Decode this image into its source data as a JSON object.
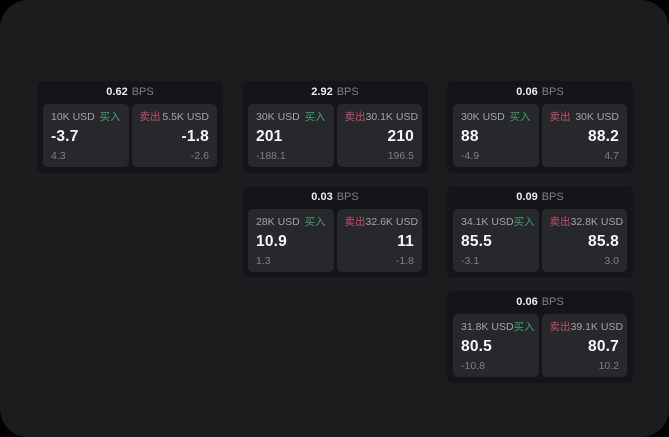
{
  "colors": {
    "buy_accent": "#43a06d",
    "sell_accent": "#c24f68"
  },
  "cards": [
    {
      "grid": {
        "row": 1,
        "col": 1
      },
      "bps": {
        "value": "0.62",
        "unit": "BPS"
      },
      "buy": {
        "amount": "10K USD",
        "label": "买入",
        "price": "-3.7",
        "sub": "4.3"
      },
      "sell": {
        "label": "卖出",
        "amount": "5.5K USD",
        "price": "-1.8",
        "sub": "-2.6"
      }
    },
    {
      "grid": {
        "row": 1,
        "col": 2
      },
      "bps": {
        "value": "2.92",
        "unit": "BPS"
      },
      "buy": {
        "amount": "30K USD",
        "label": "买入",
        "price": "201",
        "sub": "-188.1"
      },
      "sell": {
        "label": "卖出",
        "amount": "30.1K USD",
        "price": "210",
        "sub": "196.5"
      }
    },
    {
      "grid": {
        "row": 1,
        "col": 3
      },
      "bps": {
        "value": "0.06",
        "unit": "BPS"
      },
      "buy": {
        "amount": "30K USD",
        "label": "买入",
        "price": "88",
        "sub": "-4.9"
      },
      "sell": {
        "label": "卖出",
        "amount": "30K USD",
        "price": "88.2",
        "sub": "4.7"
      }
    },
    {
      "grid": {
        "row": 2,
        "col": 2
      },
      "bps": {
        "value": "0.03",
        "unit": "BPS"
      },
      "buy": {
        "amount": "28K USD",
        "label": "买入",
        "price": "10.9",
        "sub": "1.3"
      },
      "sell": {
        "label": "卖出",
        "amount": "32.6K USD",
        "price": "11",
        "sub": "-1.8"
      }
    },
    {
      "grid": {
        "row": 2,
        "col": 3
      },
      "bps": {
        "value": "0.09",
        "unit": "BPS"
      },
      "buy": {
        "amount": "34.1K USD",
        "label": "买入",
        "price": "85.5",
        "sub": "-3.1"
      },
      "sell": {
        "label": "卖出",
        "amount": "32.8K USD",
        "price": "85.8",
        "sub": "3.0"
      }
    },
    {
      "grid": {
        "row": 3,
        "col": 3
      },
      "bps": {
        "value": "0.06",
        "unit": "BPS"
      },
      "buy": {
        "amount": "31.8K USD",
        "label": "买入",
        "price": "80.5",
        "sub": "-10.8"
      },
      "sell": {
        "label": "卖出",
        "amount": "39.1K USD",
        "price": "80.7",
        "sub": "10.2"
      }
    }
  ]
}
